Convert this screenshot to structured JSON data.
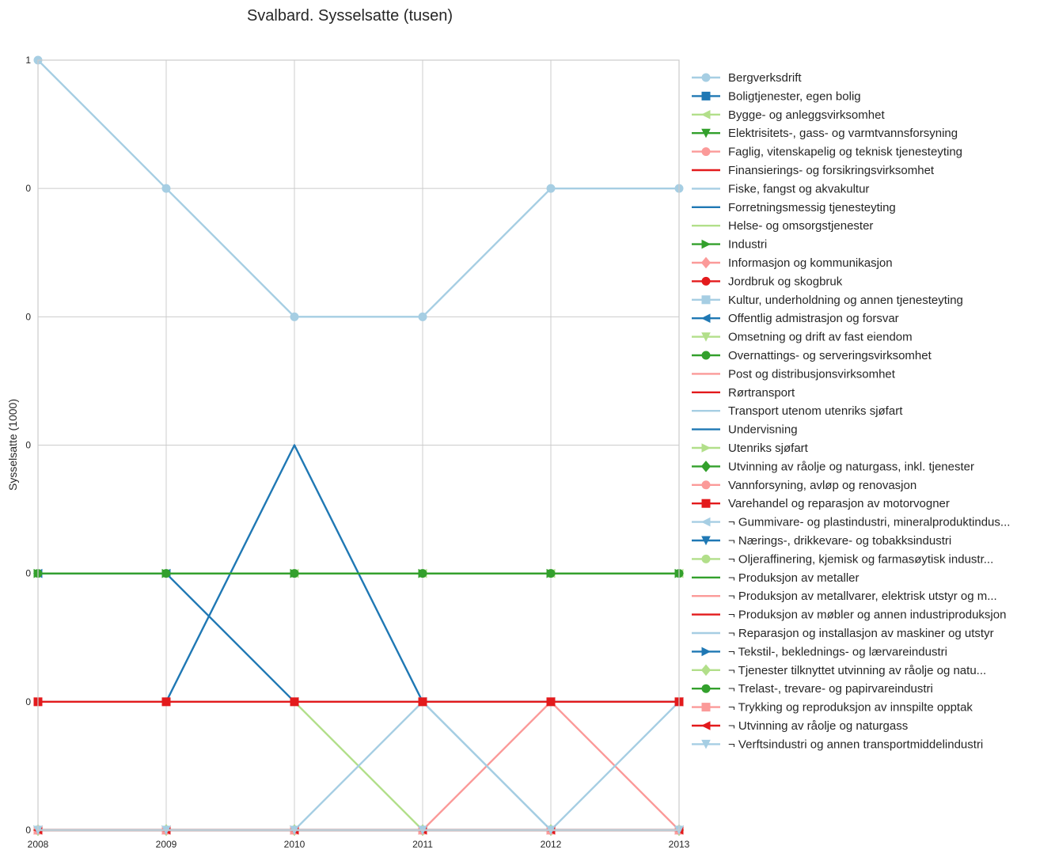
{
  "chart_data": {
    "type": "line",
    "title": "Svalbard. Sysselsatte (tusen)",
    "xlabel": "",
    "ylabel": "Sysselsatte (1000)",
    "x": [
      "2008",
      "2009",
      "2010",
      "2011",
      "2012",
      "2013"
    ],
    "ylim": [
      0.0,
      1.2
    ],
    "yticks": [
      0.0,
      0.2,
      0.4,
      0.6,
      0.8,
      1.0,
      1.2
    ],
    "ytick_labels": [
      "0",
      "0",
      "0",
      "0",
      "0",
      "0",
      "1"
    ],
    "grid": true,
    "legend_position": "right",
    "series": [
      {
        "name": "Bergverksdrift",
        "color": "#a6cee3",
        "marker": "circle",
        "values": [
          1.2,
          1.0,
          0.8,
          0.8,
          1.0,
          1.0
        ]
      },
      {
        "name": "Boligtjenester, egen bolig",
        "color": "#1f78b4",
        "marker": "square",
        "values": [
          0,
          0,
          0,
          0,
          0,
          0
        ]
      },
      {
        "name": "Bygge- og anleggsvirksomhet",
        "color": "#b2df8a",
        "marker": "triangle-left",
        "values": [
          0.4,
          0.4,
          0.4,
          0.4,
          0.4,
          0.4
        ]
      },
      {
        "name": "Elektrisitets-, gass- og varmtvannsforsyning",
        "color": "#33a02c",
        "marker": "triangle-down",
        "values": [
          0,
          0,
          0,
          0,
          0,
          0
        ]
      },
      {
        "name": "Faglig, vitenskapelig og teknisk tjenesteyting",
        "color": "#fb9a99",
        "marker": "circle",
        "values": [
          0,
          0,
          0,
          0,
          0,
          0
        ]
      },
      {
        "name": "Finansierings- og forsikringsvirksomhet",
        "color": "#e31a1c",
        "marker": "none",
        "values": [
          0,
          0,
          0,
          0,
          0,
          0
        ]
      },
      {
        "name": "Fiske, fangst og akvakultur",
        "color": "#a6cee3",
        "marker": "none",
        "values": [
          0,
          0,
          0,
          0,
          0,
          0
        ]
      },
      {
        "name": "Forretningsmessig tjenesteyting",
        "color": "#1f78b4",
        "marker": "none",
        "values": [
          0.2,
          0.2,
          0.6,
          0.2,
          0.2,
          0.2
        ]
      },
      {
        "name": "Helse- og omsorgstjenester",
        "color": "#b2df8a",
        "marker": "none",
        "values": [
          0.2,
          0.2,
          0.2,
          0.0,
          0.0,
          0.0
        ]
      },
      {
        "name": "Industri",
        "color": "#33a02c",
        "marker": "triangle-right",
        "values": [
          0.4,
          0.4,
          0.4,
          0.4,
          0.4,
          0.4
        ]
      },
      {
        "name": "Informasjon og kommunikasjon",
        "color": "#fb9a99",
        "marker": "diamond",
        "values": [
          0,
          0,
          0,
          0,
          0,
          0
        ]
      },
      {
        "name": "Jordbruk og skogbruk",
        "color": "#e31a1c",
        "marker": "circle",
        "values": [
          0,
          0,
          0,
          0,
          0,
          0
        ]
      },
      {
        "name": "Kultur, underholdning og annen tjenesteyting",
        "color": "#a6cee3",
        "marker": "square",
        "values": [
          0,
          0,
          0,
          0.2,
          0.0,
          0.0
        ]
      },
      {
        "name": "Offentlig admistrasjon og forsvar",
        "color": "#1f78b4",
        "marker": "triangle-left",
        "values": [
          0.4,
          0.4,
          0.2,
          0.2,
          0.2,
          0.2
        ]
      },
      {
        "name": "Omsetning og drift av fast eiendom",
        "color": "#b2df8a",
        "marker": "triangle-down",
        "values": [
          0,
          0,
          0,
          0,
          0,
          0
        ]
      },
      {
        "name": "Overnattings- og serveringsvirksomhet",
        "color": "#33a02c",
        "marker": "circle",
        "values": [
          0.4,
          0.4,
          0.4,
          0.4,
          0.4,
          0.4
        ]
      },
      {
        "name": "Post og distribusjonsvirksomhet",
        "color": "#fb9a99",
        "marker": "none",
        "values": [
          0.0,
          0.0,
          0.0,
          0.0,
          0.2,
          0.0
        ]
      },
      {
        "name": "Rørtransport",
        "color": "#e31a1c",
        "marker": "none",
        "values": [
          0,
          0,
          0,
          0,
          0,
          0
        ]
      },
      {
        "name": "Transport utenom utenriks sjøfart",
        "color": "#a6cee3",
        "marker": "none",
        "values": [
          0.2,
          0.2,
          0.2,
          0.2,
          0.0,
          0.2
        ]
      },
      {
        "name": "Undervisning",
        "color": "#1f78b4",
        "marker": "none",
        "values": [
          0,
          0,
          0,
          0,
          0,
          0
        ]
      },
      {
        "name": "Utenriks sjøfart",
        "color": "#b2df8a",
        "marker": "triangle-right",
        "values": [
          0,
          0,
          0,
          0,
          0,
          0
        ]
      },
      {
        "name": "Utvinning av råolje og naturgass, inkl. tjenester",
        "color": "#33a02c",
        "marker": "diamond",
        "values": [
          0,
          0,
          0,
          0,
          0,
          0
        ]
      },
      {
        "name": "Vannforsyning, avløp og renovasjon",
        "color": "#fb9a99",
        "marker": "circle",
        "values": [
          0,
          0,
          0,
          0,
          0,
          0
        ]
      },
      {
        "name": "Varehandel og reparasjon av motorvogner",
        "color": "#e31a1c",
        "marker": "square",
        "values": [
          0.2,
          0.2,
          0.2,
          0.2,
          0.2,
          0.2
        ]
      },
      {
        "name": "¬ Gummivare- og plastindustri, mineralproduktindus...",
        "color": "#a6cee3",
        "marker": "triangle-left",
        "values": [
          0,
          0,
          0,
          0,
          0,
          0
        ]
      },
      {
        "name": "¬ Nærings-, drikkevare- og tobakksindustri",
        "color": "#1f78b4",
        "marker": "triangle-down",
        "values": [
          0,
          0,
          0,
          0,
          0,
          0
        ]
      },
      {
        "name": "¬ Oljeraffinering, kjemisk og farmasøytisk industr...",
        "color": "#b2df8a",
        "marker": "circle",
        "values": [
          0,
          0,
          0,
          0,
          0,
          0
        ]
      },
      {
        "name": "¬ Produksjon av metaller",
        "color": "#33a02c",
        "marker": "none",
        "values": [
          0,
          0,
          0,
          0,
          0,
          0
        ]
      },
      {
        "name": "¬ Produksjon av metallvarer, elektrisk utstyr og m...",
        "color": "#fb9a99",
        "marker": "none",
        "values": [
          0,
          0,
          0,
          0,
          0,
          0
        ]
      },
      {
        "name": "¬ Produksjon av møbler og annen industriproduksjon",
        "color": "#e31a1c",
        "marker": "none",
        "values": [
          0,
          0,
          0,
          0,
          0,
          0
        ]
      },
      {
        "name": "¬ Reparasjon og installasjon av maskiner og utstyr",
        "color": "#a6cee3",
        "marker": "none",
        "values": [
          0,
          0,
          0,
          0,
          0,
          0
        ]
      },
      {
        "name": "¬ Tekstil-, beklednings- og lærvareindustri",
        "color": "#1f78b4",
        "marker": "triangle-right",
        "values": [
          0,
          0,
          0,
          0,
          0,
          0
        ]
      },
      {
        "name": "¬ Tjenester tilknyttet utvinning av råolje og natu...",
        "color": "#b2df8a",
        "marker": "diamond",
        "values": [
          0,
          0,
          0,
          0,
          0,
          0
        ]
      },
      {
        "name": "¬ Trelast-, trevare- og papirvareindustri",
        "color": "#33a02c",
        "marker": "circle",
        "values": [
          0,
          0,
          0,
          0,
          0,
          0
        ]
      },
      {
        "name": "¬ Trykking og reproduksjon av innspilte opptak",
        "color": "#fb9a99",
        "marker": "square",
        "values": [
          0,
          0,
          0,
          0,
          0,
          0
        ]
      },
      {
        "name": "¬ Utvinning av råolje og naturgass",
        "color": "#e31a1c",
        "marker": "triangle-left",
        "values": [
          0,
          0,
          0,
          0,
          0,
          0
        ]
      },
      {
        "name": "¬ Verftsindustri og annen transportmiddelindustri",
        "color": "#a6cee3",
        "marker": "triangle-down",
        "values": [
          0,
          0,
          0,
          0,
          0,
          0
        ]
      }
    ]
  }
}
